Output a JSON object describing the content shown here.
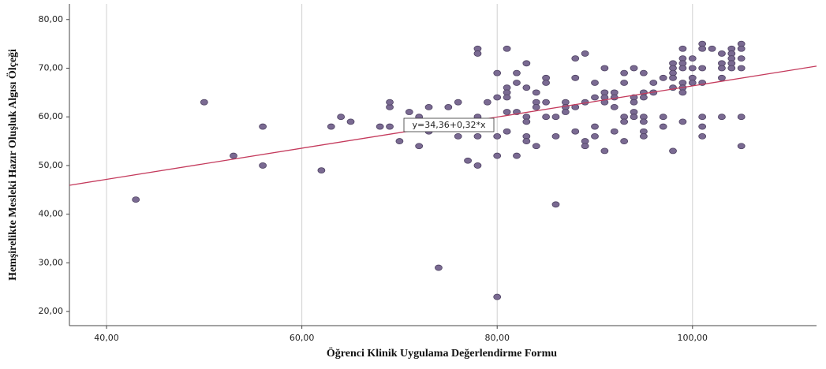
{
  "chart_data": {
    "type": "scatter",
    "x_label": "Öğrenci Klinik Uygulama Değerlendirme Formu",
    "y_label": "Hemşirelikte Mesleki Hazır Oluşluk Algısı Ölçeği",
    "fit_label": "y=34,36+0,32*x",
    "fit": {
      "intercept": 34.36,
      "slope": 0.32
    },
    "color": "#7a6a92",
    "fit_color": "#c43a5c",
    "grid": true,
    "xlim": [
      36.2,
      112.7
    ],
    "ylim": [
      17.1,
      83.2
    ],
    "xticks": [
      {
        "value": 40,
        "label": "40,00"
      },
      {
        "value": 60,
        "label": "60,00"
      },
      {
        "value": 80,
        "label": "80,00"
      },
      {
        "value": 100,
        "label": "100,00"
      }
    ],
    "yticks": [
      {
        "value": 20,
        "label": "20,00"
      },
      {
        "value": 30,
        "label": "30,00"
      },
      {
        "value": 40,
        "label": "40,00"
      },
      {
        "value": 50,
        "label": "50,00"
      },
      {
        "value": 60,
        "label": "60,00"
      },
      {
        "value": 70,
        "label": "70,00"
      },
      {
        "value": 80,
        "label": "80,00"
      }
    ],
    "x": [
      43,
      50,
      53,
      56,
      56,
      62,
      63,
      64,
      65,
      68,
      69,
      69,
      69,
      70,
      71,
      72,
      72,
      73,
      73,
      74,
      75,
      76,
      76,
      77,
      78,
      78,
      78,
      78,
      78,
      79,
      80,
      80,
      80,
      80,
      80,
      81,
      81,
      81,
      81,
      81,
      81,
      82,
      82,
      82,
      82,
      83,
      83,
      83,
      83,
      83,
      83,
      84,
      84,
      84,
      84,
      85,
      85,
      85,
      85,
      86,
      86,
      86,
      87,
      87,
      87,
      88,
      88,
      88,
      88,
      89,
      89,
      89,
      89,
      90,
      90,
      90,
      90,
      91,
      91,
      91,
      91,
      91,
      92,
      92,
      92,
      92,
      93,
      93,
      93,
      93,
      93,
      94,
      94,
      94,
      94,
      94,
      95,
      95,
      95,
      95,
      95,
      95,
      95,
      96,
      96,
      97,
      97,
      97,
      98,
      98,
      98,
      98,
      98,
      98,
      99,
      99,
      99,
      99,
      99,
      99,
      99,
      99,
      100,
      100,
      100,
      100,
      101,
      101,
      101,
      101,
      101,
      101,
      101,
      102,
      103,
      103,
      103,
      103,
      103,
      104,
      104,
      104,
      104,
      104,
      105,
      105,
      105,
      105,
      105,
      105
    ],
    "y": [
      43,
      63,
      52,
      58,
      50,
      49,
      58,
      60,
      59,
      58,
      58,
      62,
      63,
      55,
      61,
      60,
      54,
      57,
      62,
      29,
      62,
      56,
      63,
      51,
      74,
      73,
      60,
      56,
      50,
      63,
      69,
      64,
      56,
      52,
      23,
      74,
      66,
      65,
      64,
      61,
      57,
      69,
      67,
      61,
      52,
      71,
      66,
      60,
      59,
      56,
      55,
      65,
      63,
      62,
      54,
      68,
      67,
      63,
      60,
      60,
      56,
      42,
      63,
      62,
      61,
      72,
      68,
      62,
      57,
      73,
      63,
      55,
      54,
      67,
      64,
      58,
      56,
      70,
      65,
      64,
      63,
      53,
      65,
      64,
      62,
      57,
      69,
      67,
      60,
      59,
      55,
      70,
      64,
      63,
      61,
      60,
      69,
      65,
      64,
      60,
      59,
      57,
      56,
      67,
      65,
      68,
      60,
      58,
      71,
      70,
      69,
      68,
      66,
      53,
      74,
      72,
      71,
      70,
      67,
      66,
      65,
      59,
      72,
      70,
      68,
      67,
      75,
      74,
      70,
      67,
      60,
      58,
      56,
      74,
      73,
      71,
      70,
      68,
      60,
      74,
      73,
      72,
      71,
      70,
      75,
      74,
      72,
      70,
      60,
      54
    ]
  }
}
